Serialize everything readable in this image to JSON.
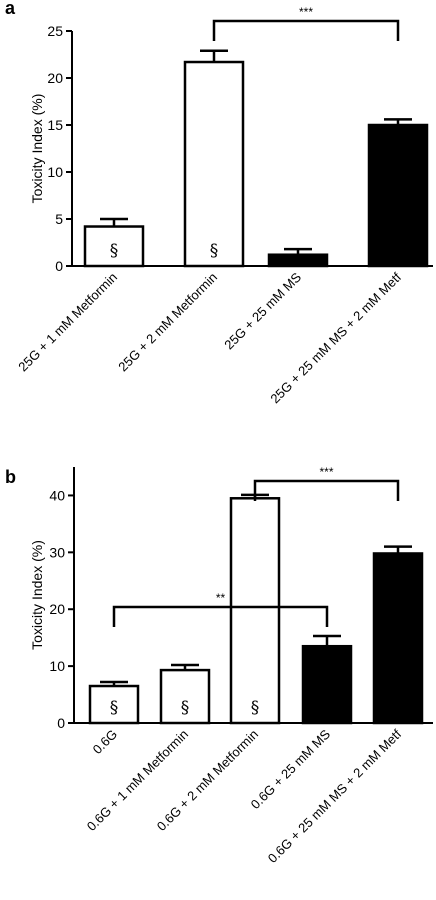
{
  "chart_data": [
    {
      "type": "bar",
      "panel": "a",
      "ylabel": "Toxicity Index (%)",
      "ylim": [
        0,
        25
      ],
      "yticks": [
        0,
        5,
        10,
        15,
        20,
        25
      ],
      "grid": false,
      "categories": [
        "25G + 1 mM Metformin",
        "25G + 2 mM Metformin",
        "25G + 25 mM MS",
        "25G + 25 mM MS + 2 mM Metf"
      ],
      "values": [
        4.2,
        21.7,
        1.2,
        15.0
      ],
      "errors": [
        0.8,
        1.2,
        0.6,
        0.6
      ],
      "bar_colors": [
        "#ffffff",
        "#ffffff",
        "#000000",
        "#000000"
      ],
      "bar_marks": [
        "§",
        "§",
        "",
        ""
      ],
      "significance": [
        {
          "from": 1,
          "to": 3,
          "label": "***"
        }
      ]
    },
    {
      "type": "bar",
      "panel": "b",
      "ylabel": "Toxicity Index (%)",
      "ylim": [
        0,
        45
      ],
      "yticks": [
        0,
        10,
        20,
        30,
        40
      ],
      "grid": false,
      "categories": [
        "0.6G",
        "0.6G + 1 mM Metformin",
        "0.6G + 2 mM Metformin",
        "0.6G + 25 mM MS",
        "0.6G + 25 mM MS + 2 mM Metf"
      ],
      "values": [
        6.5,
        9.3,
        39.5,
        13.5,
        29.8
      ],
      "errors": [
        0.7,
        0.9,
        0.6,
        1.8,
        1.2
      ],
      "bar_colors": [
        "#ffffff",
        "#ffffff",
        "#ffffff",
        "#000000",
        "#000000"
      ],
      "bar_marks": [
        "§",
        "§",
        "§",
        "",
        ""
      ],
      "significance": [
        {
          "from": 2,
          "to": 4,
          "label": "***"
        },
        {
          "from": 0,
          "to": 3,
          "label": "**"
        }
      ]
    }
  ]
}
